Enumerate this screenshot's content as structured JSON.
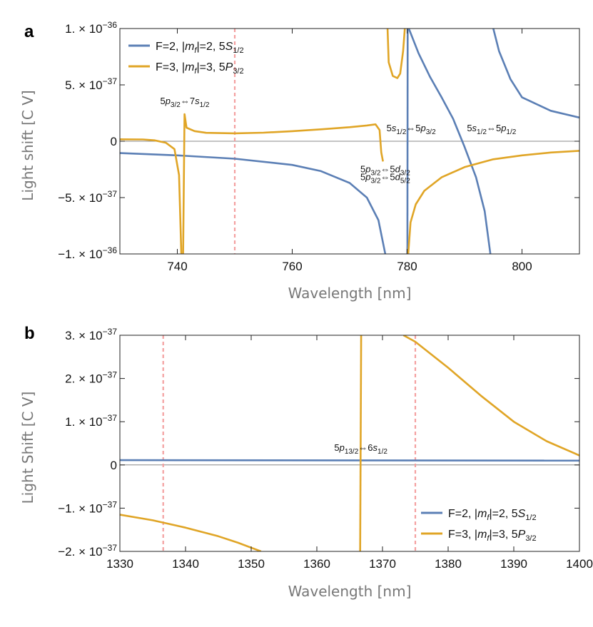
{
  "colors": {
    "series_blue": "#5b7fb5",
    "series_orange": "#e0a526",
    "marker_red": "#f4a0a0",
    "frame": "#222222",
    "zero_line": "#888888"
  },
  "chart_data": [
    {
      "panel": "a",
      "type": "line",
      "xlabel": "Wavelength [nm]",
      "ylabel": "Light shift [C V]",
      "xlim": [
        730,
        810
      ],
      "ylim": [
        -1e-36,
        1e-36
      ],
      "xticks": [
        740,
        760,
        780,
        800
      ],
      "yticks": [
        {
          "value": 1e-36,
          "label": "1. × 10",
          "exp": "−36"
        },
        {
          "value": 5e-37,
          "label": "5. × 10",
          "exp": "−37"
        },
        {
          "value": 0,
          "label": "0",
          "exp": ""
        },
        {
          "value": -5e-37,
          "label": "−5. × 10",
          "exp": "−37"
        },
        {
          "value": -1e-36,
          "label": "−1. × 10",
          "exp": "−36"
        }
      ],
      "vlines": [
        750
      ],
      "legend_position": "top-left",
      "series": [
        {
          "name": "F=2, |m_f|=2, 5S_1/2",
          "legend": {
            "pre": "F=2, |",
            "m": "m",
            "f": "f",
            "mid": "|=2, 5",
            "S": "S",
            "sub": "1/2"
          },
          "color_key": "series_blue",
          "segments": [
            [
              [
                730,
                -1.05e-37
              ],
              [
                740,
                -1.25e-37
              ],
              [
                750,
                -1.55e-37
              ],
              [
                760,
                -2.1e-37
              ],
              [
                765,
                -2.65e-37
              ],
              [
                770,
                -3.7e-37
              ],
              [
                773,
                -5e-37
              ],
              [
                775,
                -7e-37
              ],
              [
                776.2,
                -1e-36
              ]
            ],
            [
              [
                780.05,
                -1e-36
              ],
              [
                780.1,
                1e-36
              ]
            ],
            [
              [
                780.3,
                1e-36
              ],
              [
                782,
                7.8e-37
              ],
              [
                784,
                5.7e-37
              ],
              [
                786,
                3.9e-37
              ],
              [
                788,
                2e-37
              ],
              [
                790,
                -5e-38
              ],
              [
                792,
                -3.2e-37
              ],
              [
                793.5,
                -6.2e-37
              ],
              [
                794.5,
                -1e-36
              ]
            ],
            [
              [
                795.0,
                1e-36
              ],
              [
                796,
                8e-37
              ],
              [
                798,
                5.5e-37
              ],
              [
                800,
                3.9e-37
              ],
              [
                805,
                2.7e-37
              ],
              [
                810,
                2.1e-37
              ]
            ]
          ]
        },
        {
          "name": "F=3, |m_f|=3, 5P_3/2",
          "legend": {
            "pre": "F=3, |",
            "m": "m",
            "f": "f",
            "mid": "|=3, 5",
            "S": "P",
            "sub": "3/2"
          },
          "color_key": "series_orange",
          "segments": [
            [
              [
                730,
                1.7e-38
              ],
              [
                734,
                1.6e-38
              ],
              [
                736,
                8e-39
              ],
              [
                738,
                -1.3e-38
              ],
              [
                739.5,
                -7e-38
              ],
              [
                740.3,
                -3e-37
              ],
              [
                740.7,
                -1e-36
              ]
            ],
            [
              [
                741,
                -1e-36
              ],
              [
                741.25,
                2.4e-37
              ],
              [
                741.6,
                1.2e-37
              ],
              [
                743,
                9e-38
              ],
              [
                745,
                7.5e-38
              ],
              [
                750,
                7e-38
              ],
              [
                755,
                7.6e-38
              ],
              [
                760,
                8.9e-38
              ],
              [
                765,
                1.06e-37
              ],
              [
                770,
                1.25e-37
              ],
              [
                773,
                1.4e-37
              ],
              [
                774.5,
                1.5e-37
              ],
              [
                775.2,
                1e-37
              ],
              [
                775.5,
                -1e-37
              ],
              [
                775.8,
                -1.8e-37
              ]
            ],
            [
              [
                776.6,
                1e-36
              ],
              [
                776.8,
                7e-37
              ],
              [
                777.5,
                5.8e-37
              ],
              [
                778.3,
                5.6e-37
              ],
              [
                778.8,
                6e-37
              ],
              [
                779.3,
                8e-37
              ],
              [
                779.6,
                1e-36
              ]
            ],
            [
              [
                780.2,
                -1e-36
              ],
              [
                780.6,
                -7.2e-37
              ],
              [
                781.5,
                -5.6e-37
              ],
              [
                783,
                -4.4e-37
              ],
              [
                786,
                -3.2e-37
              ],
              [
                790,
                -2.3e-37
              ],
              [
                795,
                -1.6e-37
              ],
              [
                800,
                -1.25e-37
              ],
              [
                805,
                -1e-37
              ],
              [
                810,
                -8.5e-38
              ]
            ]
          ]
        }
      ],
      "annotations": [
        {
          "x": 741.3,
          "y": 3.3e-37,
          "parts": [
            [
              "5"
            ],
            [
              "p",
              "i"
            ],
            [
              "3/2",
              "sub"
            ],
            [
              "⇔7"
            ],
            [
              "s",
              "i"
            ],
            [
              "1/2",
              "sub"
            ]
          ]
        },
        {
          "x": 780.7,
          "y": 9e-38,
          "parts": [
            [
              "5"
            ],
            [
              "s",
              "i"
            ],
            [
              "1/2",
              "sub"
            ],
            [
              "⇔5"
            ],
            [
              "p",
              "i"
            ],
            [
              "3/2",
              "sub"
            ]
          ]
        },
        {
          "x": 794.7,
          "y": 9e-38,
          "parts": [
            [
              "5"
            ],
            [
              "s",
              "i"
            ],
            [
              "1/2",
              "sub"
            ],
            [
              "⇔5"
            ],
            [
              "p",
              "i"
            ],
            [
              "1/2",
              "sub"
            ]
          ]
        },
        {
          "x": 776.2,
          "y": -2.75e-37,
          "parts": [
            [
              "5"
            ],
            [
              "p",
              "i"
            ],
            [
              "3/2",
              "sub"
            ],
            [
              "⇔5"
            ],
            [
              "d",
              "i"
            ],
            [
              "3/2",
              "sub"
            ]
          ]
        },
        {
          "x": 776.2,
          "y": -3.45e-37,
          "parts": [
            [
              "5"
            ],
            [
              "p",
              "i"
            ],
            [
              "3/2",
              "sub"
            ],
            [
              "⇔5"
            ],
            [
              "d",
              "i"
            ],
            [
              "5/2",
              "sub"
            ]
          ]
        }
      ]
    },
    {
      "panel": "b",
      "type": "line",
      "xlabel": "Wavelength [nm]",
      "ylabel": "Light Shift [C V]",
      "xlim": [
        1330,
        1400
      ],
      "ylim": [
        -2e-37,
        3e-37
      ],
      "xticks": [
        1330,
        1340,
        1350,
        1360,
        1370,
        1380,
        1390,
        1400
      ],
      "yticks": [
        {
          "value": 3e-37,
          "label": "3. × 10",
          "exp": "−37"
        },
        {
          "value": 2e-37,
          "label": "2. × 10",
          "exp": "−37"
        },
        {
          "value": 1e-37,
          "label": "1. × 10",
          "exp": "−37"
        },
        {
          "value": 0,
          "label": "0",
          "exp": ""
        },
        {
          "value": -1e-37,
          "label": "−1. × 10",
          "exp": "−37"
        },
        {
          "value": -2e-37,
          "label": "−2. × 10",
          "exp": "−37"
        }
      ],
      "vlines": [
        1336.6,
        1375
      ],
      "legend_position": "bottom-right",
      "series": [
        {
          "name": "F=2, |m_f|=2, 5S_1/2",
          "legend": {
            "pre": "F=2, |",
            "m": "m",
            "f": "f",
            "mid": "|=2, 5",
            "S": "S",
            "sub": "1/2"
          },
          "color_key": "series_blue",
          "segments": [
            [
              [
                1330,
                1.1e-38
              ],
              [
                1400,
                1e-38
              ]
            ]
          ]
        },
        {
          "name": "F=3, |m_f|=3, 5P_3/2",
          "legend": {
            "pre": "F=3, |",
            "m": "m",
            "f": "f",
            "mid": "|=3, 5",
            "S": "P",
            "sub": "3/2"
          },
          "color_key": "series_orange",
          "segments": [
            [
              [
                1330,
                -1.15e-37
              ],
              [
                1335,
                -1.28e-37
              ],
              [
                1340,
                -1.45e-37
              ],
              [
                1345,
                -1.65e-37
              ],
              [
                1348,
                -1.8e-37
              ],
              [
                1351.5,
                -2e-37
              ]
            ],
            [
              [
                1366.6,
                -2e-37
              ],
              [
                1366.75,
                3e-37
              ]
            ],
            [
              [
                1373.2,
                3e-37
              ],
              [
                1375,
                2.85e-37
              ],
              [
                1380,
                2.25e-37
              ],
              [
                1385,
                1.6e-37
              ],
              [
                1390,
                1e-37
              ],
              [
                1395,
                5.5e-38
              ],
              [
                1400,
                2.2e-38
              ]
            ]
          ]
        }
      ],
      "annotations": [
        {
          "x": 1366.7,
          "y": 3.3e-38,
          "parts": [
            [
              "5"
            ],
            [
              "p",
              "i"
            ],
            [
              "13/2",
              "sub"
            ],
            [
              "⇔6"
            ],
            [
              "s",
              "i"
            ],
            [
              "1/2",
              "sub"
            ]
          ]
        }
      ]
    }
  ]
}
